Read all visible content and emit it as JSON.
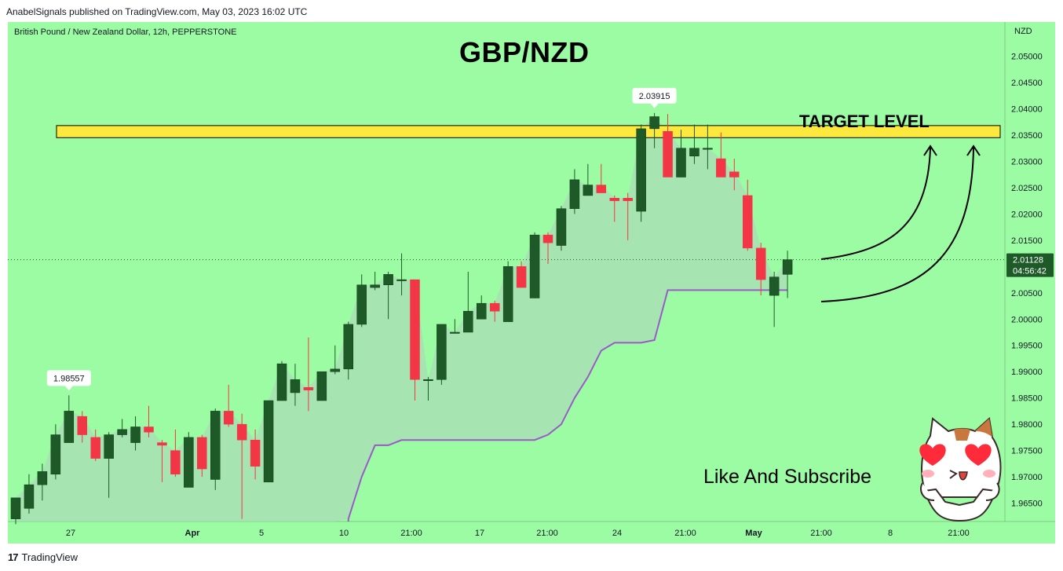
{
  "publisher_line": "AnabelSignals published on TradingView.com, May 03, 2023 16:02 UTC",
  "footer": {
    "brand": "TradingView",
    "logo_icon": "tradingview-logo-icon"
  },
  "header": {
    "symbol_description": "British Pound / New Zealand Dollar, 12h, PEPPERSTONE",
    "title": "GBP/NZD",
    "currency": "NZD"
  },
  "annotations": {
    "target_label": "TARGET LEVEL",
    "cta": "Like And Subscribe",
    "mascot_icon": "heart-eyes-cat-icon"
  },
  "colors": {
    "background": "#9cfca4",
    "bull": "#1e5a28",
    "bear": "#f23645",
    "zone": "#fde83d",
    "trail": "#9b59c9",
    "fill": "#a8e0b4"
  },
  "chart_data": {
    "type": "candlestick",
    "title": "GBP/NZD",
    "ylim": [
      1.9615,
      2.0565
    ],
    "y_ticks": [
      "2.05000",
      "2.04500",
      "2.04000",
      "2.03500",
      "2.03000",
      "2.02500",
      "2.02000",
      "2.01500",
      "2.01000",
      "2.00500",
      "2.00000",
      "1.99500",
      "1.99000",
      "1.98500",
      "1.98000",
      "1.97500",
      "1.97000",
      "1.96500"
    ],
    "x_ticks": [
      "27",
      "Apr",
      "5",
      "10",
      "21:00",
      "17",
      "21:00",
      "24",
      "21:00",
      "May",
      "21:00",
      "8",
      "21:00"
    ],
    "candles": [
      {
        "o": 1.962,
        "h": 1.966,
        "l": 1.961,
        "c": 1.966
      },
      {
        "o": 1.964,
        "h": 1.9705,
        "l": 1.963,
        "c": 1.9685
      },
      {
        "o": 1.9685,
        "h": 1.9725,
        "l": 1.9655,
        "c": 1.971
      },
      {
        "o": 1.9705,
        "h": 1.98,
        "l": 1.9695,
        "c": 1.978
      },
      {
        "o": 1.9765,
        "h": 1.9855,
        "l": 1.9765,
        "c": 1.9825
      },
      {
        "o": 1.9815,
        "h": 1.9825,
        "l": 1.9765,
        "c": 1.978
      },
      {
        "o": 1.9775,
        "h": 1.979,
        "l": 1.973,
        "c": 1.9735
      },
      {
        "o": 1.9735,
        "h": 1.9785,
        "l": 1.966,
        "c": 1.978
      },
      {
        "o": 1.978,
        "h": 1.981,
        "l": 1.9775,
        "c": 1.979
      },
      {
        "o": 1.9765,
        "h": 1.9815,
        "l": 1.975,
        "c": 1.9795
      },
      {
        "o": 1.9795,
        "h": 1.9835,
        "l": 1.9775,
        "c": 1.9785
      },
      {
        "o": 1.9765,
        "h": 1.977,
        "l": 1.969,
        "c": 1.976
      },
      {
        "o": 1.975,
        "h": 1.979,
        "l": 1.97,
        "c": 1.9705
      },
      {
        "o": 1.968,
        "h": 1.9785,
        "l": 1.968,
        "c": 1.9775
      },
      {
        "o": 1.9775,
        "h": 1.978,
        "l": 1.97,
        "c": 1.9715
      },
      {
        "o": 1.9695,
        "h": 1.983,
        "l": 1.9675,
        "c": 1.9825
      },
      {
        "o": 1.9825,
        "h": 1.9875,
        "l": 1.9795,
        "c": 1.98
      },
      {
        "o": 1.98,
        "h": 1.982,
        "l": 1.962,
        "c": 1.977
      },
      {
        "o": 1.977,
        "h": 1.979,
        "l": 1.9695,
        "c": 1.972
      },
      {
        "o": 1.969,
        "h": 1.9845,
        "l": 1.969,
        "c": 1.9845
      },
      {
        "o": 1.9845,
        "h": 1.992,
        "l": 1.9845,
        "c": 1.9915
      },
      {
        "o": 1.986,
        "h": 1.9915,
        "l": 1.9835,
        "c": 1.9885
      },
      {
        "o": 1.987,
        "h": 1.9965,
        "l": 1.9825,
        "c": 1.9865
      },
      {
        "o": 1.9845,
        "h": 1.99,
        "l": 1.9845,
        "c": 1.99
      },
      {
        "o": 1.99,
        "h": 1.995,
        "l": 1.9895,
        "c": 1.9905
      },
      {
        "o": 1.9905,
        "h": 1.9995,
        "l": 1.9885,
        "c": 1.999
      },
      {
        "o": 1.999,
        "h": 2.0085,
        "l": 1.9985,
        "c": 2.0065
      },
      {
        "o": 2.006,
        "h": 2.009,
        "l": 2.0055,
        "c": 2.0065
      },
      {
        "o": 2.0065,
        "h": 2.009,
        "l": 2.0,
        "c": 2.0085
      },
      {
        "o": 2.0075,
        "h": 2.0125,
        "l": 2.0045,
        "c": 2.0075
      },
      {
        "o": 2.0075,
        "h": 2.0075,
        "l": 1.9845,
        "c": 1.9885
      },
      {
        "o": 1.9885,
        "h": 1.989,
        "l": 1.9845,
        "c": 1.9885
      },
      {
        "o": 1.9885,
        "h": 1.999,
        "l": 1.9875,
        "c": 1.999
      },
      {
        "o": 1.9975,
        "h": 2.0,
        "l": 1.9975,
        "c": 1.9975
      },
      {
        "o": 1.9975,
        "h": 2.009,
        "l": 1.9975,
        "c": 2.0015
      },
      {
        "o": 2.0,
        "h": 2.0045,
        "l": 2.0,
        "c": 2.003
      },
      {
        "o": 2.003,
        "h": 2.0035,
        "l": 1.9995,
        "c": 2.0015
      },
      {
        "o": 1.9995,
        "h": 2.011,
        "l": 1.9995,
        "c": 2.01
      },
      {
        "o": 2.01,
        "h": 2.011,
        "l": 2.006,
        "c": 2.006
      },
      {
        "o": 2.004,
        "h": 2.0165,
        "l": 2.004,
        "c": 2.016
      },
      {
        "o": 2.016,
        "h": 2.0165,
        "l": 2.0105,
        "c": 2.0145
      },
      {
        "o": 2.014,
        "h": 2.0215,
        "l": 2.013,
        "c": 2.021
      },
      {
        "o": 2.021,
        "h": 2.0285,
        "l": 2.02,
        "c": 2.0265
      },
      {
        "o": 2.0235,
        "h": 2.0295,
        "l": 2.0235,
        "c": 2.0255
      },
      {
        "o": 2.0255,
        "h": 2.0295,
        "l": 2.024,
        "c": 2.024
      },
      {
        "o": 2.023,
        "h": 2.0235,
        "l": 2.0185,
        "c": 2.0225
      },
      {
        "o": 2.023,
        "h": 2.024,
        "l": 2.015,
        "c": 2.0225
      },
      {
        "o": 2.0205,
        "h": 2.037,
        "l": 2.0185,
        "c": 2.0362
      },
      {
        "o": 2.0362,
        "h": 2.0392,
        "l": 2.0325,
        "c": 2.0385
      },
      {
        "o": 2.0357,
        "h": 2.039,
        "l": 2.027,
        "c": 2.027
      },
      {
        "o": 2.027,
        "h": 2.036,
        "l": 2.027,
        "c": 2.0325
      },
      {
        "o": 2.031,
        "h": 2.037,
        "l": 2.0295,
        "c": 2.0325
      },
      {
        "o": 2.0325,
        "h": 2.037,
        "l": 2.0285,
        "c": 2.0325
      },
      {
        "o": 2.0305,
        "h": 2.0355,
        "l": 2.027,
        "c": 2.027
      },
      {
        "o": 2.028,
        "h": 2.0305,
        "l": 2.0245,
        "c": 2.027
      },
      {
        "o": 2.0235,
        "h": 2.0265,
        "l": 2.013,
        "c": 2.0135
      },
      {
        "o": 2.0135,
        "h": 2.0145,
        "l": 2.0045,
        "c": 2.0075
      },
      {
        "o": 2.0045,
        "h": 2.009,
        "l": 1.9985,
        "c": 2.008
      },
      {
        "o": 2.0085,
        "h": 2.013,
        "l": 2.004,
        "c": 2.0113
      }
    ],
    "trail_stop": [
      null,
      null,
      null,
      null,
      null,
      null,
      null,
      null,
      null,
      null,
      null,
      null,
      null,
      null,
      null,
      null,
      null,
      null,
      null,
      null,
      null,
      null,
      null,
      null,
      null,
      1.962,
      1.97,
      1.976,
      1.976,
      1.977,
      1.977,
      1.977,
      1.977,
      1.977,
      1.977,
      1.977,
      1.977,
      1.977,
      1.977,
      1.977,
      1.978,
      1.98,
      1.985,
      1.989,
      1.994,
      1.9955,
      1.9955,
      1.9955,
      1.996,
      2.0055,
      2.0055,
      2.0055,
      2.0055,
      2.0055,
      2.0055,
      2.0055,
      2.0055,
      2.0055,
      2.0055
    ],
    "target_zone": [
      2.0345,
      2.0368
    ],
    "high_label": "2.03915",
    "low_label": "1.98557",
    "price_label": "2.01128",
    "countdown_label": "04:56:42",
    "last_price": 2.0113
  }
}
